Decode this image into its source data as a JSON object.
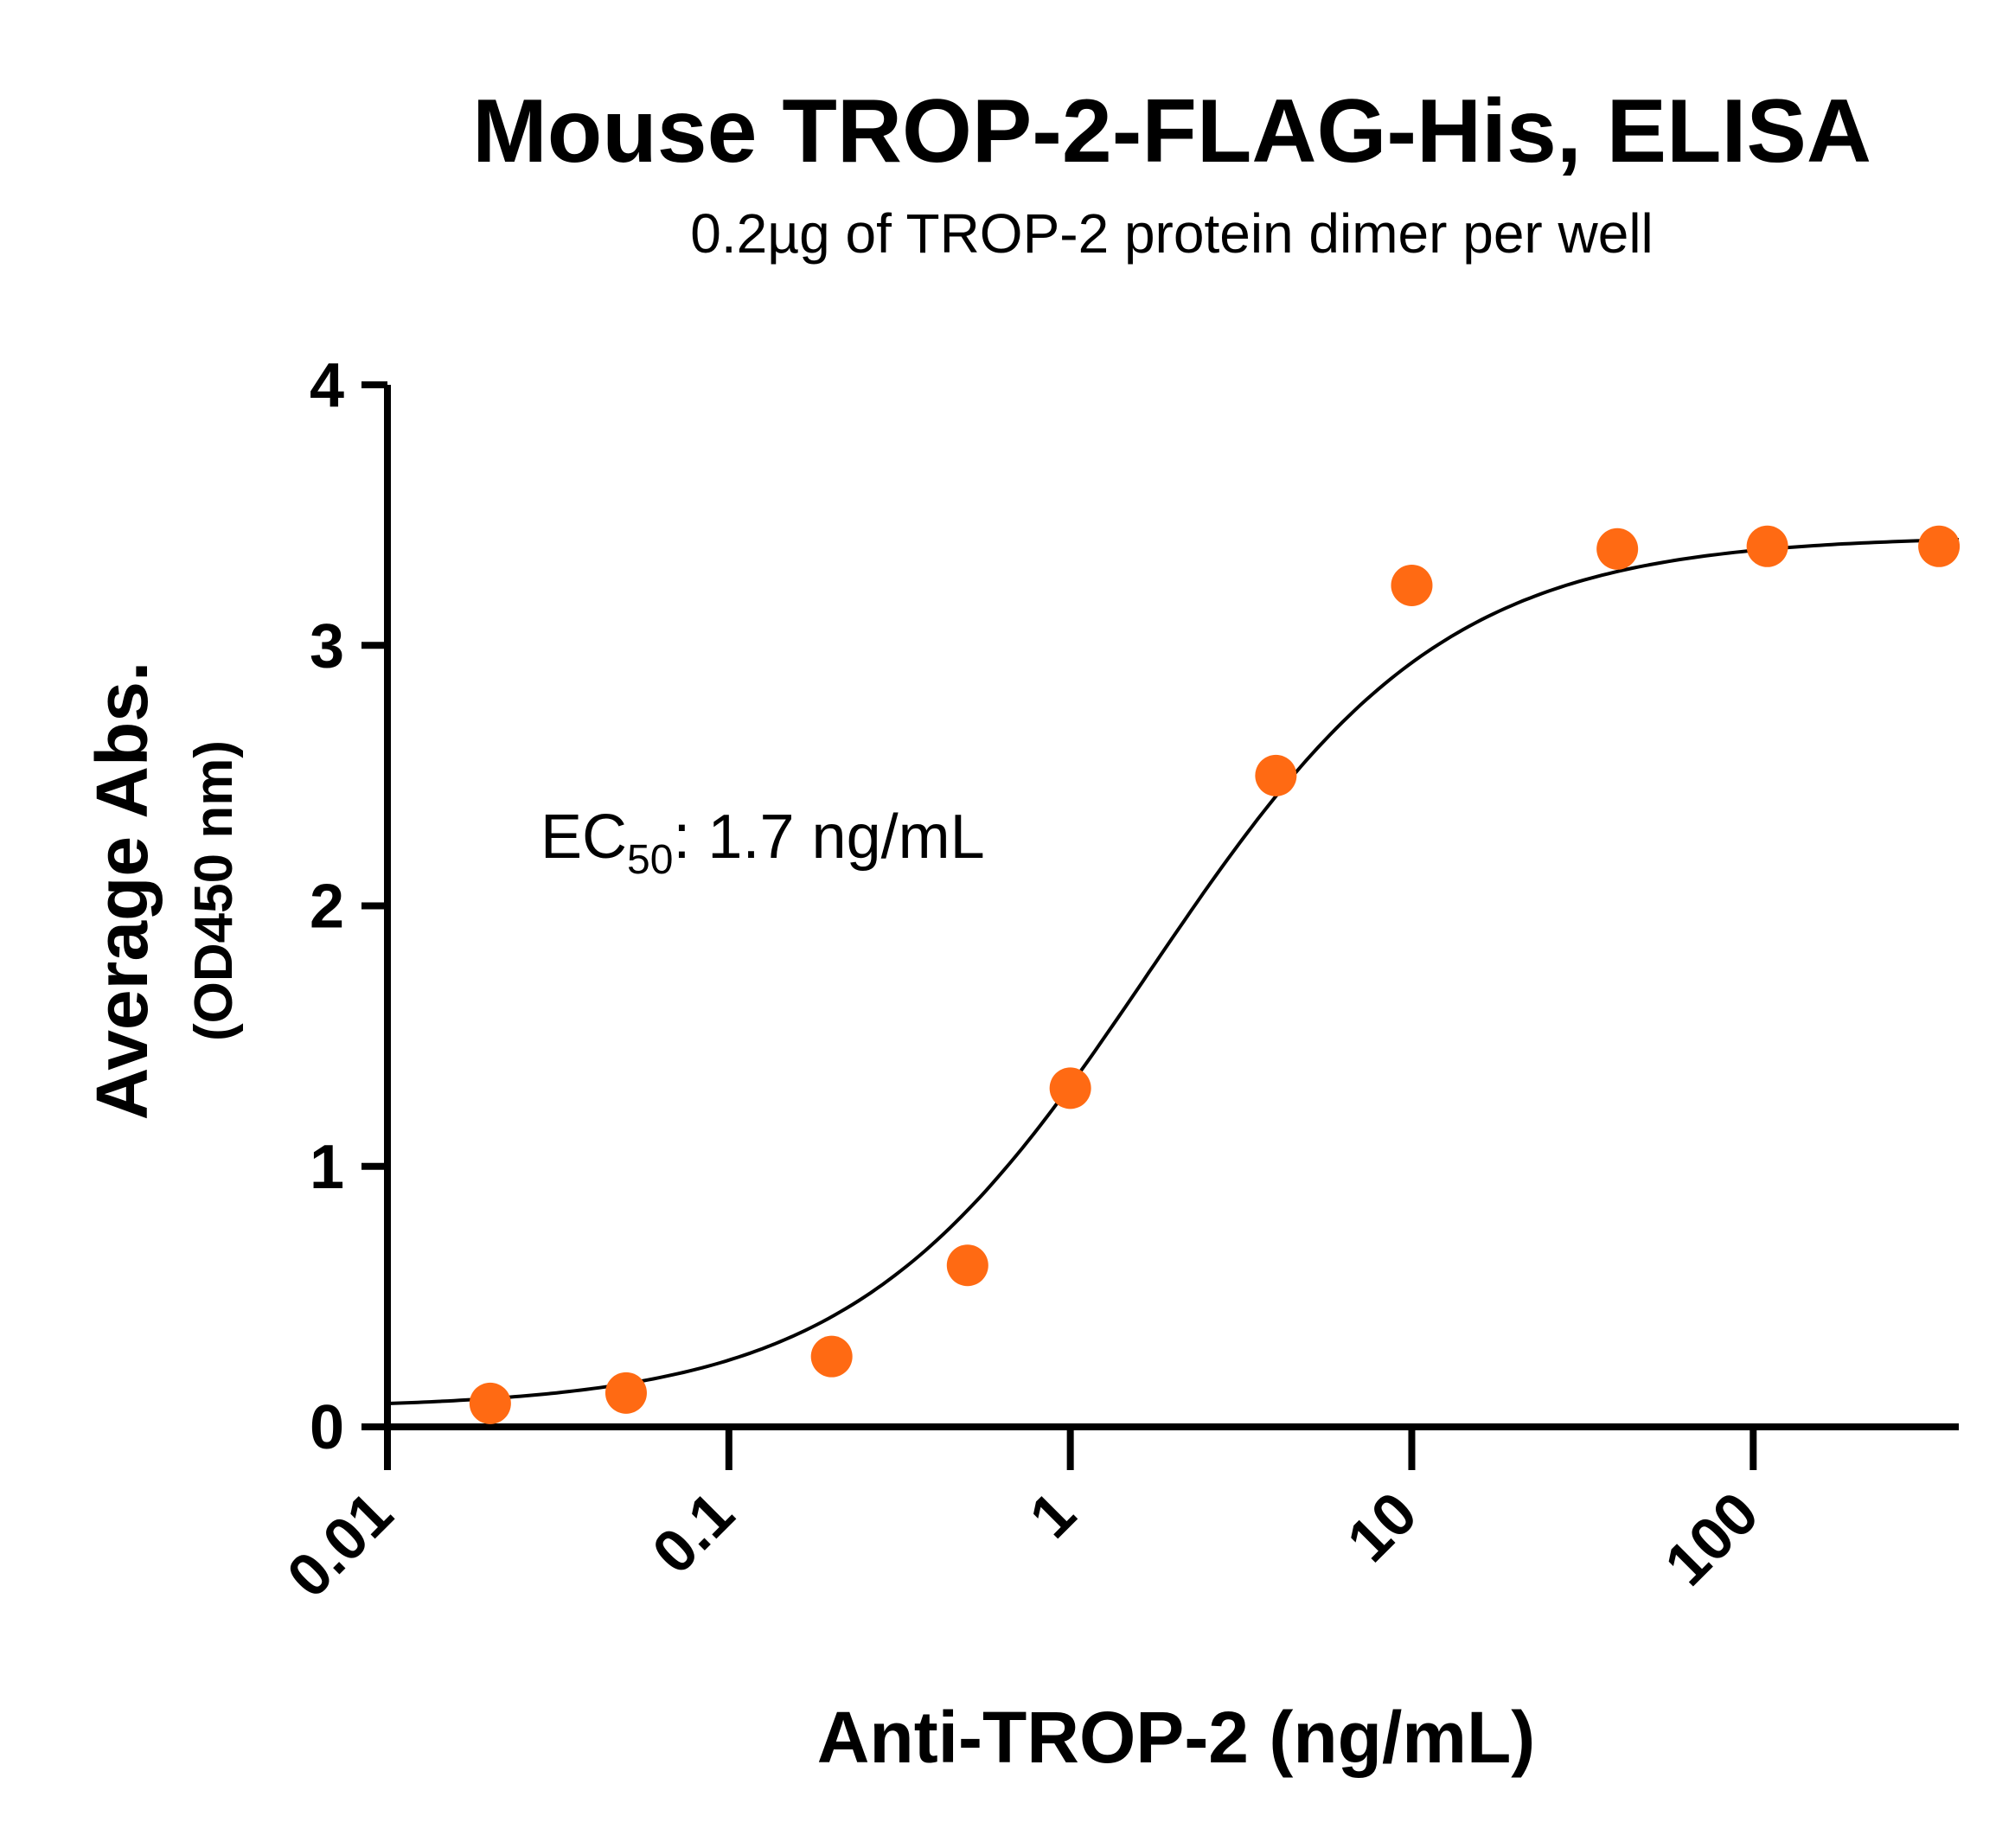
{
  "chart_data": {
    "type": "scatter",
    "title": "Mouse TROP-2-FLAG-His, ELISA",
    "subtitle": "0.2µg of TROP-2 protein dimer per well",
    "xlabel": "Anti-TROP-2 (ng/mL)",
    "ylabel": "Average Abs.",
    "ylabel_sub": "(OD450 nm)",
    "x_scale": "log",
    "xlim": [
      0.01,
      400
    ],
    "ylim": [
      0,
      4
    ],
    "x_ticks": [
      {
        "value": 0.01,
        "label": "0.01"
      },
      {
        "value": 0.1,
        "label": "0.1"
      },
      {
        "value": 1,
        "label": "1"
      },
      {
        "value": 10,
        "label": "10"
      },
      {
        "value": 100,
        "label": "100"
      }
    ],
    "y_ticks": [
      {
        "value": 0,
        "label": "0"
      },
      {
        "value": 1,
        "label": "1"
      },
      {
        "value": 2,
        "label": "2"
      },
      {
        "value": 3,
        "label": "3"
      },
      {
        "value": 4,
        "label": "4"
      }
    ],
    "series": [
      {
        "x": [
          0.02,
          0.05,
          0.2,
          0.5,
          1.0,
          4.0,
          10.0,
          40.0,
          110.0,
          350.0
        ],
        "y": [
          0.09,
          0.13,
          0.27,
          0.62,
          1.3,
          2.5,
          3.23,
          3.37,
          3.38,
          3.38
        ],
        "color": "#ff6a13"
      }
    ],
    "fit": {
      "type": "4PL",
      "bottom": 0.07,
      "top": 3.42,
      "ec50": 1.7,
      "hill": 1.0,
      "color": "#000000"
    },
    "annotation": {
      "prefix": "EC",
      "subscript": "50",
      "suffix": ": 1.7 ng/mL"
    },
    "grid": false,
    "legend": "none"
  }
}
